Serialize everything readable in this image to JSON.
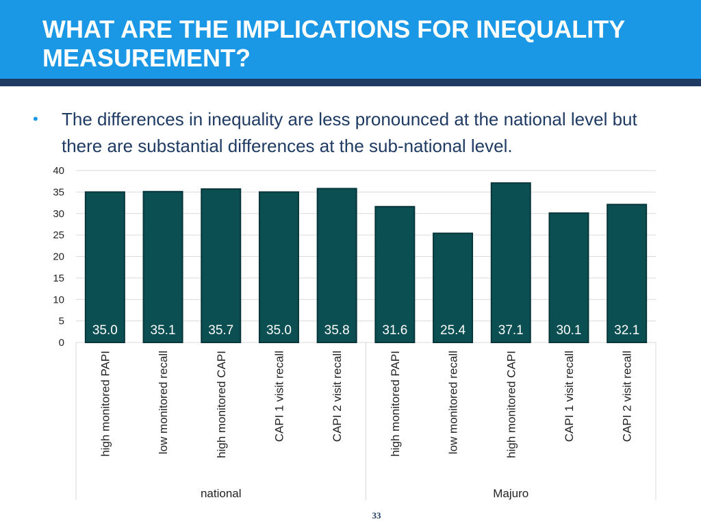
{
  "slide": {
    "title": "WHAT ARE THE IMPLICATIONS FOR INEQUALITY MEASUREMENT?",
    "bullet_marker": "•",
    "bullet_text": "The differences in inequality are less pronounced at the national level but there are substantial differences at the sub-national level.",
    "page_number": "33"
  },
  "colors": {
    "header_bg": "#1a98e6",
    "header_rule": "#1f3b63",
    "bar_fill": "#0b4f52",
    "bar_stroke": "#07363a",
    "text_dark": "#1f3b63"
  },
  "chart_data": {
    "type": "bar",
    "categories": [
      "high monitored PAPI",
      "low monitored recall",
      "high monitored CAPI",
      "CAPI 1 visit recall",
      "CAPI 2 visit recall",
      "high monitored PAPI",
      "low monitored recall",
      "high monitored CAPI",
      "CAPI 1 visit recall",
      "CAPI 2 visit recall"
    ],
    "groups": [
      {
        "label": "national",
        "count": 5
      },
      {
        "label": "Majuro",
        "count": 5
      }
    ],
    "values": [
      35.0,
      35.1,
      35.7,
      35.0,
      35.8,
      31.6,
      25.4,
      37.1,
      30.1,
      32.1
    ],
    "value_labels": [
      "35.0",
      "35.1",
      "35.7",
      "35.0",
      "35.8",
      "31.6",
      "25.4",
      "37.1",
      "30.1",
      "32.1"
    ],
    "yticks": [
      0,
      5,
      10,
      15,
      20,
      25,
      30,
      35,
      40
    ],
    "ylim": [
      0,
      40
    ],
    "grid": true,
    "legend": false
  }
}
